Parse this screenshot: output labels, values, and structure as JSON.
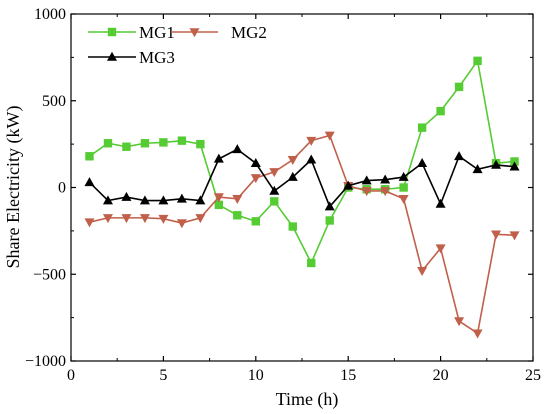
{
  "chart_data": {
    "type": "line",
    "title": "",
    "xlabel": "Time (h)",
    "ylabel": "Share Electricity (kW)",
    "xlim": [
      0,
      25
    ],
    "ylim": [
      -1000,
      1000
    ],
    "x_ticks": [
      0,
      5,
      10,
      15,
      20,
      25
    ],
    "y_ticks": [
      -1000,
      -500,
      0,
      500,
      1000
    ],
    "x_tick_labels": [
      "0",
      "5",
      "10",
      "15",
      "20",
      "25"
    ],
    "y_tick_labels": [
      "−1000",
      "−500",
      "0",
      "500",
      "1000"
    ],
    "grid": false,
    "legend_placement": "top-left",
    "x": [
      1,
      2,
      3,
      4,
      5,
      6,
      7,
      8,
      9,
      10,
      11,
      12,
      13,
      14,
      15,
      16,
      17,
      18,
      19,
      20,
      21,
      22,
      23,
      24
    ],
    "series": [
      {
        "name": "MG1",
        "color": "#55cc33",
        "marker": "square",
        "values": [
          180,
          255,
          235,
          255,
          260,
          270,
          250,
          -100,
          -160,
          -195,
          -80,
          -225,
          -435,
          -190,
          0,
          -10,
          -10,
          0,
          345,
          440,
          580,
          730,
          140,
          150
        ]
      },
      {
        "name": "MG2",
        "color": "#c0604a",
        "marker": "triangle-down",
        "values": [
          -200,
          -175,
          -175,
          -175,
          -180,
          -205,
          -175,
          -55,
          -65,
          55,
          90,
          160,
          270,
          300,
          10,
          -20,
          -20,
          -65,
          -480,
          -350,
          -770,
          -840,
          -270,
          -275
        ]
      },
      {
        "name": "MG3",
        "color": "#000000",
        "marker": "triangle-up",
        "values": [
          30,
          -75,
          -55,
          -75,
          -75,
          -65,
          -75,
          165,
          220,
          140,
          -20,
          60,
          160,
          -110,
          10,
          40,
          45,
          60,
          140,
          -95,
          180,
          105,
          130,
          120
        ]
      }
    ]
  }
}
